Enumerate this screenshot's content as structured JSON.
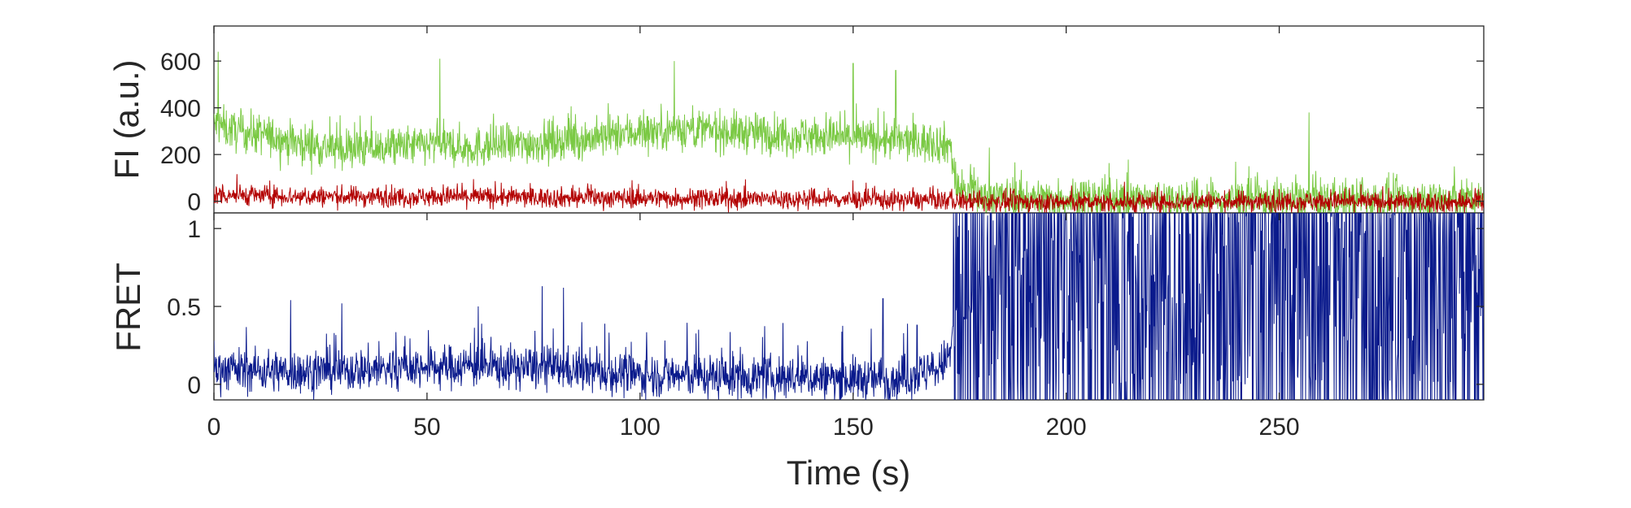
{
  "chart_data": [
    {
      "type": "line",
      "panel": "top",
      "ylabel": "FI (a.u.)",
      "xlim": [
        0,
        298
      ],
      "ylim": [
        -50,
        750
      ],
      "yticks": [
        0,
        200,
        400,
        600
      ],
      "ytick_labels": [
        "0",
        "200",
        "400",
        "600"
      ],
      "series": [
        {
          "color": "#7ac943",
          "description_points": [
            [
              0,
              330
            ],
            [
              5,
              300
            ],
            [
              10,
              290
            ],
            [
              20,
              250
            ],
            [
              30,
              220
            ],
            [
              40,
              230
            ],
            [
              50,
              240
            ],
            [
              60,
              230
            ],
            [
              70,
              240
            ],
            [
              80,
              260
            ],
            [
              90,
              270
            ],
            [
              100,
              300
            ],
            [
              110,
              310
            ],
            [
              120,
              300
            ],
            [
              130,
              290
            ],
            [
              140,
              280
            ],
            [
              150,
              270
            ],
            [
              160,
              260
            ],
            [
              170,
              250
            ],
            [
              173,
              240
            ],
            [
              174,
              60
            ],
            [
              180,
              20
            ],
            [
              190,
              15
            ],
            [
              200,
              10
            ],
            [
              220,
              10
            ],
            [
              240,
              5
            ],
            [
              258,
              5
            ],
            [
              260,
              5
            ],
            [
              280,
              5
            ],
            [
              298,
              5
            ]
          ],
          "noise": 80,
          "spikes": [
            [
              1,
              640
            ],
            [
              53,
              610
            ],
            [
              108,
              600
            ],
            [
              150,
              590
            ],
            [
              160,
              560
            ],
            [
              257,
              380
            ],
            [
              182,
              230
            ]
          ]
        },
        {
          "color": "#b30000",
          "description_points": [
            [
              0,
              30
            ],
            [
              20,
              20
            ],
            [
              40,
              20
            ],
            [
              60,
              20
            ],
            [
              80,
              15
            ],
            [
              100,
              15
            ],
            [
              120,
              10
            ],
            [
              140,
              10
            ],
            [
              160,
              5
            ],
            [
              173,
              5
            ],
            [
              174,
              0
            ],
            [
              200,
              -5
            ],
            [
              220,
              -5
            ],
            [
              240,
              0
            ],
            [
              260,
              0
            ],
            [
              280,
              -5
            ],
            [
              298,
              -5
            ]
          ],
          "noise": 40,
          "spikes": []
        }
      ]
    },
    {
      "type": "line",
      "panel": "bottom",
      "ylabel": "FRET",
      "xlabel": "Time (s)",
      "xlim": [
        0,
        298
      ],
      "ylim": [
        -0.1,
        1.1
      ],
      "xticks": [
        0,
        50,
        100,
        150,
        200,
        250
      ],
      "xtick_labels": [
        "0",
        "50",
        "100",
        "150",
        "200",
        "250"
      ],
      "yticks": [
        0,
        0.5,
        1
      ],
      "ytick_labels": [
        "0",
        "0.5",
        "1"
      ],
      "series": [
        {
          "color": "#0a1a8c",
          "description_points": [
            [
              0,
              0.1
            ],
            [
              20,
              0.08
            ],
            [
              40,
              0.1
            ],
            [
              60,
              0.12
            ],
            [
              80,
              0.1
            ],
            [
              100,
              0.06
            ],
            [
              120,
              0.05
            ],
            [
              140,
              0.04
            ],
            [
              160,
              0.03
            ],
            [
              170,
              0.1
            ],
            [
              173,
              0.2
            ],
            [
              174,
              0.6
            ],
            [
              200,
              0.55
            ],
            [
              250,
              0.55
            ],
            [
              298,
              0.55
            ]
          ],
          "low_range_max": 0.4,
          "high_state_start": 173.5,
          "spikes": [
            [
              0,
              0.28
            ],
            [
              18,
              0.54
            ],
            [
              30,
              0.52
            ],
            [
              62,
              0.5
            ],
            [
              77,
              0.63
            ],
            [
              82,
              0.62
            ],
            [
              157,
              0.55
            ],
            [
              165,
              0.38
            ]
          ]
        }
      ]
    }
  ]
}
